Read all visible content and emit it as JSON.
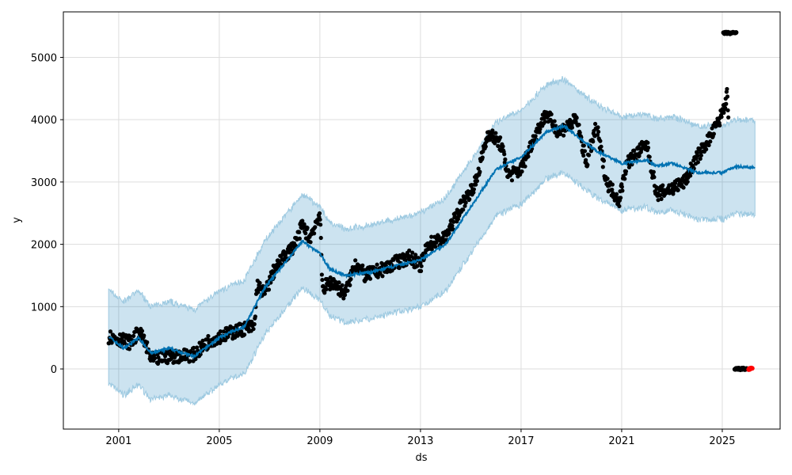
{
  "chart_data": {
    "type": "line",
    "title": "",
    "xlabel": "ds",
    "ylabel": "y",
    "xlim": [
      1998.8,
      2027.3
    ],
    "ylim": [
      -965,
      5730
    ],
    "grid": true,
    "x_ticks": [
      2001,
      2005,
      2009,
      2013,
      2017,
      2021,
      2025
    ],
    "x_tick_labels": [
      "2001",
      "2005",
      "2009",
      "2013",
      "2017",
      "2021",
      "2025"
    ],
    "y_ticks": [
      0,
      1000,
      2000,
      3000,
      4000,
      5000
    ],
    "y_tick_labels": [
      "0",
      "1000",
      "2000",
      "3000",
      "4000",
      "5000"
    ],
    "colors": {
      "observed": "#000000",
      "forecast": "#0072B2",
      "interval": "#0072B2",
      "outlier": "#ff0000"
    },
    "observed_keypoints": [
      [
        2000.6,
        520
      ],
      [
        2001.0,
        480
      ],
      [
        2001.5,
        420
      ],
      [
        2001.8,
        600
      ],
      [
        2002.0,
        450
      ],
      [
        2002.3,
        150
      ],
      [
        2003,
        200
      ],
      [
        2004,
        230
      ],
      [
        2004.6,
        450
      ],
      [
        2005,
        520
      ],
      [
        2006,
        650
      ],
      [
        2006.4,
        680
      ],
      [
        2006.5,
        1350
      ],
      [
        2006.8,
        1200
      ],
      [
        2007.2,
        1600
      ],
      [
        2007.6,
        1800
      ],
      [
        2008,
        2000
      ],
      [
        2008.3,
        2300
      ],
      [
        2008.6,
        2100
      ],
      [
        2009,
        2500
      ],
      [
        2009.1,
        1300
      ],
      [
        2009.5,
        1400
      ],
      [
        2010,
        1200
      ],
      [
        2010.4,
        1700
      ],
      [
        2010.8,
        1500
      ],
      [
        2011.5,
        1600
      ],
      [
        2012,
        1700
      ],
      [
        2012.6,
        1800
      ],
      [
        2013,
        1650
      ],
      [
        2013.3,
        2000
      ],
      [
        2014,
        2100
      ],
      [
        2014.6,
        2600
      ],
      [
        2015.2,
        3000
      ],
      [
        2015.7,
        3800
      ],
      [
        2016.2,
        3600
      ],
      [
        2016.5,
        3100
      ],
      [
        2017,
        3200
      ],
      [
        2017.5,
        3700
      ],
      [
        2018,
        4100
      ],
      [
        2018.5,
        3800
      ],
      [
        2019.2,
        4000
      ],
      [
        2019.6,
        3300
      ],
      [
        2020,
        3900
      ],
      [
        2020.4,
        3000
      ],
      [
        2020.9,
        2700
      ],
      [
        2021.2,
        3300
      ],
      [
        2021.7,
        3500
      ],
      [
        2022,
        3600
      ],
      [
        2022.4,
        2800
      ],
      [
        2023,
        2900
      ],
      [
        2023.5,
        3000
      ],
      [
        2024,
        3400
      ],
      [
        2024.5,
        3700
      ],
      [
        2024.9,
        4000
      ],
      [
        2025.2,
        4400
      ],
      [
        2025.25,
        3900
      ]
    ],
    "observed_clusters": [
      {
        "x_range": [
          2025.05,
          2025.55
        ],
        "y": 5390,
        "series": "observed"
      },
      {
        "x_range": [
          2025.5,
          2026.0
        ],
        "y": 0,
        "series": "observed"
      },
      {
        "x_range": [
          2026.05,
          2026.2
        ],
        "y": 0,
        "series": "outlier"
      }
    ],
    "forecast_yhat": [
      [
        2000.6,
        520
      ],
      [
        2001.2,
        330
      ],
      [
        2001.8,
        500
      ],
      [
        2002.3,
        250
      ],
      [
        2003,
        330
      ],
      [
        2004,
        200
      ],
      [
        2005,
        500
      ],
      [
        2005.5,
        600
      ],
      [
        2006,
        680
      ],
      [
        2006.8,
        1300
      ],
      [
        2007.5,
        1650
      ],
      [
        2008.3,
        2050
      ],
      [
        2009,
        1850
      ],
      [
        2009.4,
        1600
      ],
      [
        2010,
        1500
      ],
      [
        2011,
        1550
      ],
      [
        2012,
        1650
      ],
      [
        2013,
        1750
      ],
      [
        2014,
        2000
      ],
      [
        2015,
        2600
      ],
      [
        2016,
        3200
      ],
      [
        2017,
        3400
      ],
      [
        2018,
        3800
      ],
      [
        2018.7,
        3900
      ],
      [
        2019.5,
        3650
      ],
      [
        2020,
        3500
      ],
      [
        2021,
        3300
      ],
      [
        2022,
        3350
      ],
      [
        2022.4,
        3250
      ],
      [
        2023,
        3300
      ],
      [
        2024,
        3150
      ],
      [
        2025,
        3150
      ],
      [
        2025.5,
        3250
      ],
      [
        2026.3,
        3230
      ]
    ],
    "interval_half_width": 750
  }
}
